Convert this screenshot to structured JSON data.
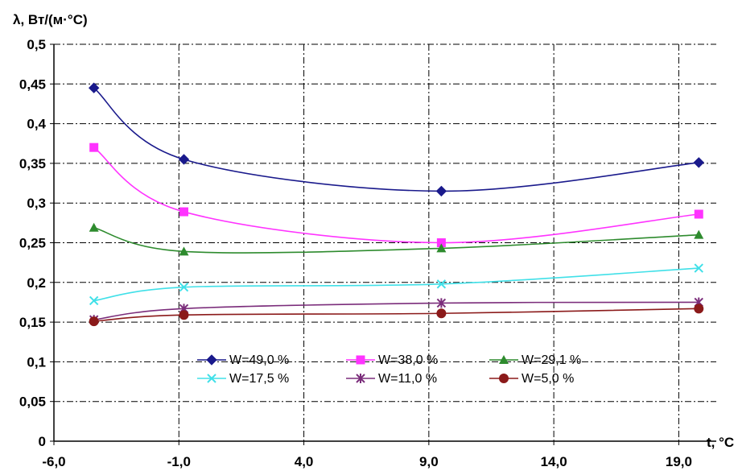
{
  "chart_data": {
    "type": "line",
    "ylabel": "λ, Вт/(м·°С)",
    "xlabel": "t, °C",
    "x_ticks": [
      "-6,0",
      "-1,0",
      "4,0",
      "9,0",
      "14,0",
      "19,0"
    ],
    "x_tick_values": [
      -6,
      -1,
      4,
      9,
      14,
      19
    ],
    "y_ticks": [
      "0",
      "0,05",
      "0,1",
      "0,15",
      "0,2",
      "0,25",
      "0,3",
      "0,35",
      "0,4",
      "0,45",
      "0,5"
    ],
    "y_tick_values": [
      0,
      0.05,
      0.1,
      0.15,
      0.2,
      0.25,
      0.3,
      0.35,
      0.4,
      0.45,
      0.5
    ],
    "xlim": [
      -6,
      20.5
    ],
    "ylim": [
      0,
      0.5
    ],
    "grid": true,
    "legend_position": "lower-center",
    "x": [
      -4.4,
      -0.8,
      9.5,
      19.8
    ],
    "series": [
      {
        "name": "W=49,0 %",
        "marker": "diamond",
        "color": "#1a1a8c",
        "values": [
          0.445,
          0.355,
          0.315,
          0.351
        ]
      },
      {
        "name": "W=38,0 %",
        "marker": "square",
        "color": "#ff33ff",
        "values": [
          0.37,
          0.289,
          0.25,
          0.286
        ]
      },
      {
        "name": "W=29,1 %",
        "marker": "triangle",
        "color": "#2e8b2e",
        "values": [
          0.269,
          0.239,
          0.243,
          0.26
        ]
      },
      {
        "name": "W=17,5 %",
        "marker": "x",
        "color": "#40e0e8",
        "values": [
          0.177,
          0.194,
          0.198,
          0.218
        ]
      },
      {
        "name": "W=11,0 %",
        "marker": "star",
        "color": "#7b2d7b",
        "values": [
          0.153,
          0.167,
          0.174,
          0.175
        ]
      },
      {
        "name": "W=5,0 %",
        "marker": "circle",
        "color": "#8b1a1a",
        "values": [
          0.151,
          0.159,
          0.161,
          0.167
        ]
      }
    ]
  }
}
